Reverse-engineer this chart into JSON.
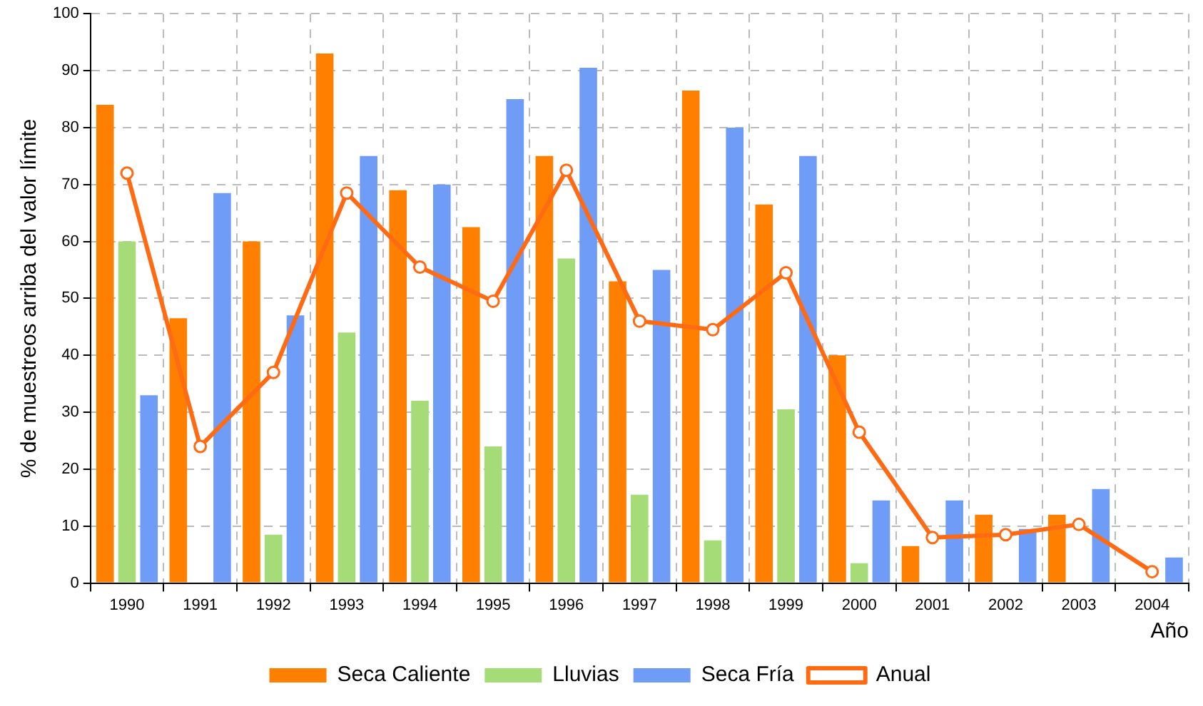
{
  "chart_data": {
    "type": "bar",
    "xlabel": "Año",
    "ylabel": "% de muestreos arriba del valor límite",
    "categories": [
      "1990",
      "1991",
      "1992",
      "1993",
      "1994",
      "1995",
      "1996",
      "1997",
      "1998",
      "1999",
      "2000",
      "2001",
      "2002",
      "2003",
      "2004"
    ],
    "series": [
      {
        "name": "Seca Caliente",
        "color": "#ff8000",
        "values": [
          84,
          46.5,
          60,
          93,
          69,
          62.5,
          75,
          53,
          86.5,
          66.5,
          40,
          6.5,
          12,
          12,
          null
        ]
      },
      {
        "name": "Lluvias",
        "color": "#a6dc78",
        "values": [
          60,
          null,
          8.5,
          44,
          32,
          24,
          57,
          15.5,
          7.5,
          30.5,
          3.5,
          null,
          null,
          null,
          null
        ]
      },
      {
        "name": "Seca Fría",
        "color": "#6f9cf7",
        "values": [
          33,
          68.5,
          47,
          75,
          70,
          85,
          90.5,
          55,
          80,
          75,
          14.5,
          14.5,
          9.5,
          16.5,
          4.5
        ]
      },
      {
        "name": "Anual",
        "type": "line",
        "color": "#ff6a13",
        "values": [
          72,
          24,
          37,
          68.5,
          55.5,
          49.5,
          72.5,
          46,
          44.5,
          54.5,
          26.5,
          8,
          8.5,
          10.3,
          2
        ]
      }
    ],
    "ylim": [
      0,
      100
    ],
    "yticks": [
      0,
      10,
      20,
      30,
      40,
      50,
      60,
      70,
      80,
      90,
      100
    ],
    "grid": true,
    "legend": "bottom",
    "marker": "circle"
  }
}
